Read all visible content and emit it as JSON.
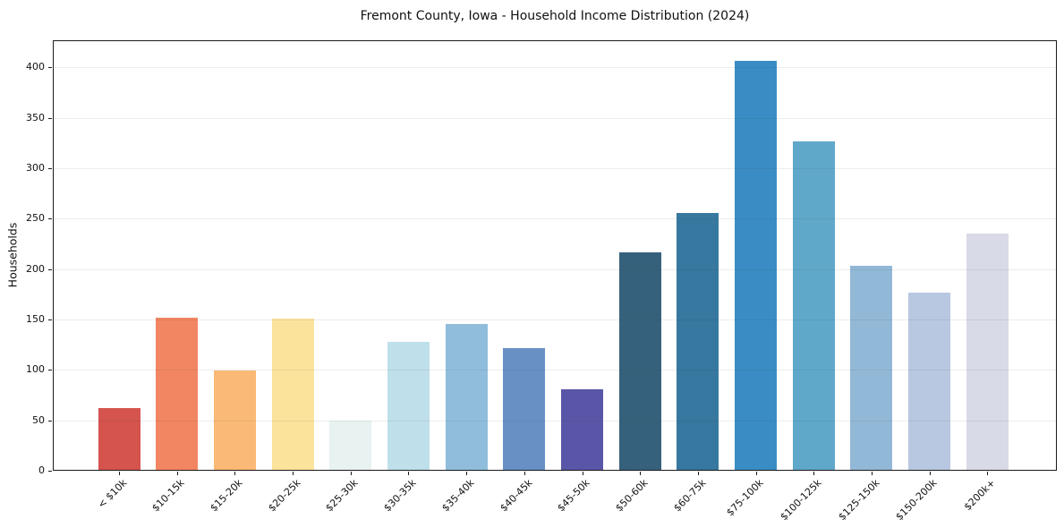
{
  "chart_data": {
    "type": "bar",
    "title": "Fremont County, Iowa - Household Income Distribution (2024)",
    "xlabel": "",
    "ylabel": "Households",
    "categories": [
      "< $10k",
      "$10-15k",
      "$15-20k",
      "$20-25k",
      "$25-30k",
      "$30-35k",
      "$35-40k",
      "$40-45k",
      "$45-50k",
      "$50-60k",
      "$60-75k",
      "$75-100k",
      "$100-125k",
      "$125-150k",
      "$150-200k",
      "$200k+"
    ],
    "values": [
      62,
      152,
      99,
      151,
      50,
      128,
      146,
      122,
      81,
      217,
      256,
      407,
      327,
      203,
      177,
      235
    ],
    "bar_colors": [
      "#d5544e",
      "#f28663",
      "#fab976",
      "#fce39c",
      "#e7f2f1",
      "#bfe0ea",
      "#90bddc",
      "#6990c5",
      "#5956a7",
      "#36617c",
      "#36789f",
      "#3a8dc4",
      "#5fa8ca",
      "#92b8d7",
      "#b8c8e0",
      "#d9dae7"
    ],
    "yticks": [
      0,
      50,
      100,
      150,
      200,
      250,
      300,
      350,
      400
    ],
    "ylim": [
      0,
      427
    ],
    "grid": "horizontal",
    "legend": "none",
    "background": "#ffffff",
    "axis_color": "#1a1a1a",
    "text_color": "#111111"
  }
}
